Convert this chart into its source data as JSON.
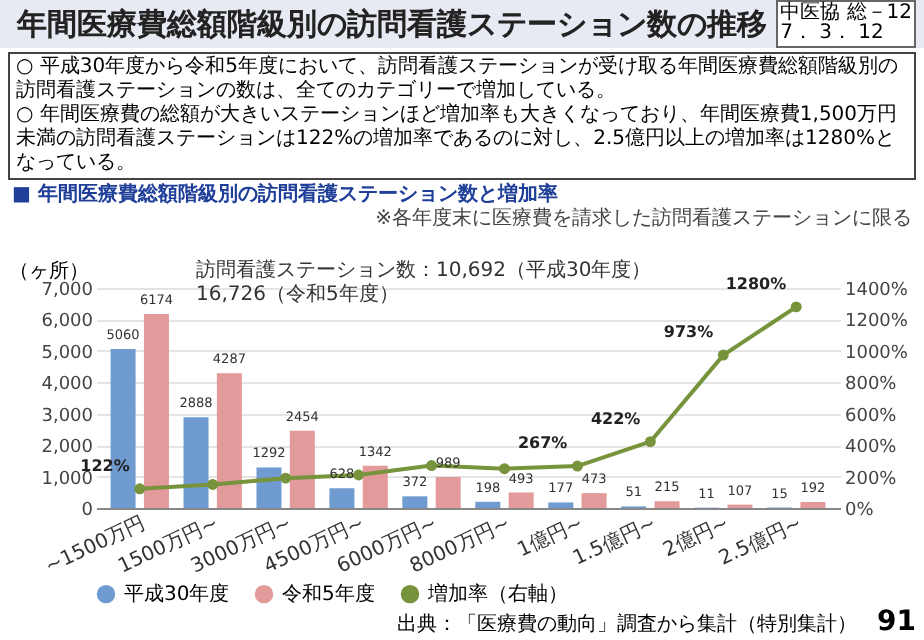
{
  "chart_data": {
    "type": "bar",
    "title": "年間医療費総額階級別の訪問看護ステーション数の推移",
    "subtitle": "○ 平成30年度から令和5年度において、訪問看護ステーションが受け取る年間医療費総額階級別の訪問看護ステーションの数は、全てのカテゴリーで増加している。\n○ 年間医療費の総額が大きいステーションほど増加率も大きくなっており、年間医療費1,500万円未満の訪問看護ステーションは122%の増加率であるのに対し、2.5億円以上の増加率は1280%となっている。",
    "ylabel": "（ヶ所）",
    "annotations": [
      "中医協 総－12\n7． 3． 12",
      "■ 年間医療費総額階級別の訪問看護ステーション数と増加率",
      "※各年度末に医療費を請求した訪問看護ステーションに限る",
      "訪問看護ステーション数：10,692（平成30年度）　16,726（令和5年度）",
      "出典：「医療費の動向」調査から集計（特別集計）",
      "91"
    ],
    "categories": [
      "~1500万円",
      "1500万円~",
      "3000万円~",
      "4500万円~",
      "6000万円~",
      "8000万円~",
      "1億円~",
      "1.5億円~",
      "2億円~",
      "2.5億円~"
    ],
    "series": [
      {
        "name": "平成30年度",
        "type": "bar",
        "color": "#6f9bd1",
        "values": [
          5060,
          2888,
          1292,
          628,
          372,
          198,
          177,
          51,
          11,
          15
        ],
        "value_labels": [
          "5060",
          "2888",
          "1292",
          "628",
          "372",
          "198",
          "177",
          "51",
          "11",
          "15"
        ]
      },
      {
        "name": "令和5年度",
        "type": "bar",
        "color": "#e39a9a",
        "values": [
          6174,
          4287,
          2454,
          1342,
          989,
          493,
          473,
          215,
          107,
          192
        ],
        "value_labels": [
          "6174",
          "4287",
          "2454",
          "1342",
          "989",
          "493",
          "473",
          "215",
          "107",
          "192"
        ]
      },
      {
        "name": "増加率（右軸）",
        "type": "line",
        "axis": "y2",
        "color": "#77933c",
        "values": [
          122,
          150,
          190,
          210,
          270,
          250,
          267,
          422,
          973,
          1280
        ],
        "value_labels": [
          "122%",
          null,
          null,
          null,
          null,
          null,
          "267%",
          "422%",
          "973%",
          "1280%"
        ]
      }
    ],
    "ylim": [
      0,
      7000
    ],
    "yticks": [
      0,
      {
        "value": 1000,
        "label": "1,000"
      },
      {
        "value": 2000,
        "label": "2,000"
      },
      {
        "value": 3000,
        "label": "3,000"
      },
      {
        "value": 4000,
        "label": "4,000"
      },
      {
        "value": 5000,
        "label": "5,000"
      },
      {
        "value": 6000,
        "label": "6,000"
      },
      {
        "value": 7000,
        "label": "7,000"
      }
    ],
    "y2lim": [
      0,
      1400
    ],
    "y2ticks": [
      {
        "value": 0,
        "label": "0%"
      },
      {
        "value": 200,
        "label": "200%"
      },
      {
        "value": 400,
        "label": "400%"
      },
      {
        "value": 600,
        "label": "600%"
      },
      {
        "value": 800,
        "label": "800%"
      },
      {
        "value": 1000,
        "label": "1000%"
      },
      {
        "value": 1200,
        "label": "1200%"
      },
      {
        "value": 1400,
        "label": "1400%"
      }
    ],
    "grid": "y",
    "legend": "bottom",
    "marker": "circle",
    "line_style": "solid"
  }
}
